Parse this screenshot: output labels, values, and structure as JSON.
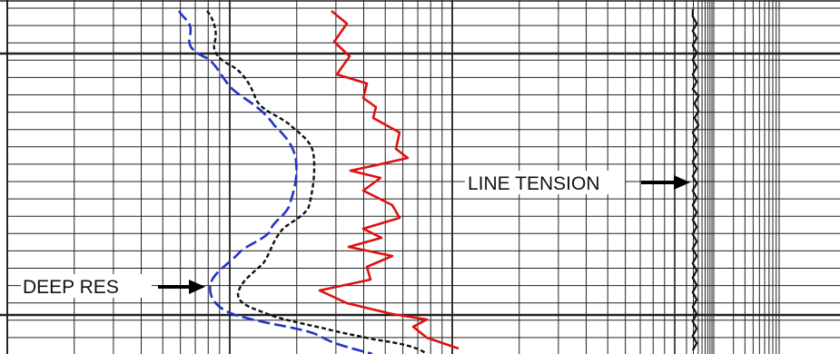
{
  "annotations": {
    "line_tension": "LINE TENSION",
    "deep_res": "DEEP RES"
  },
  "colors": {
    "grid": "#222222",
    "deep_resistivity": "#111111",
    "shallow_resistivity": "#2233cc",
    "gamma_curve": "#e01010",
    "line_tension": "#111111",
    "arrow": "#000000"
  }
}
